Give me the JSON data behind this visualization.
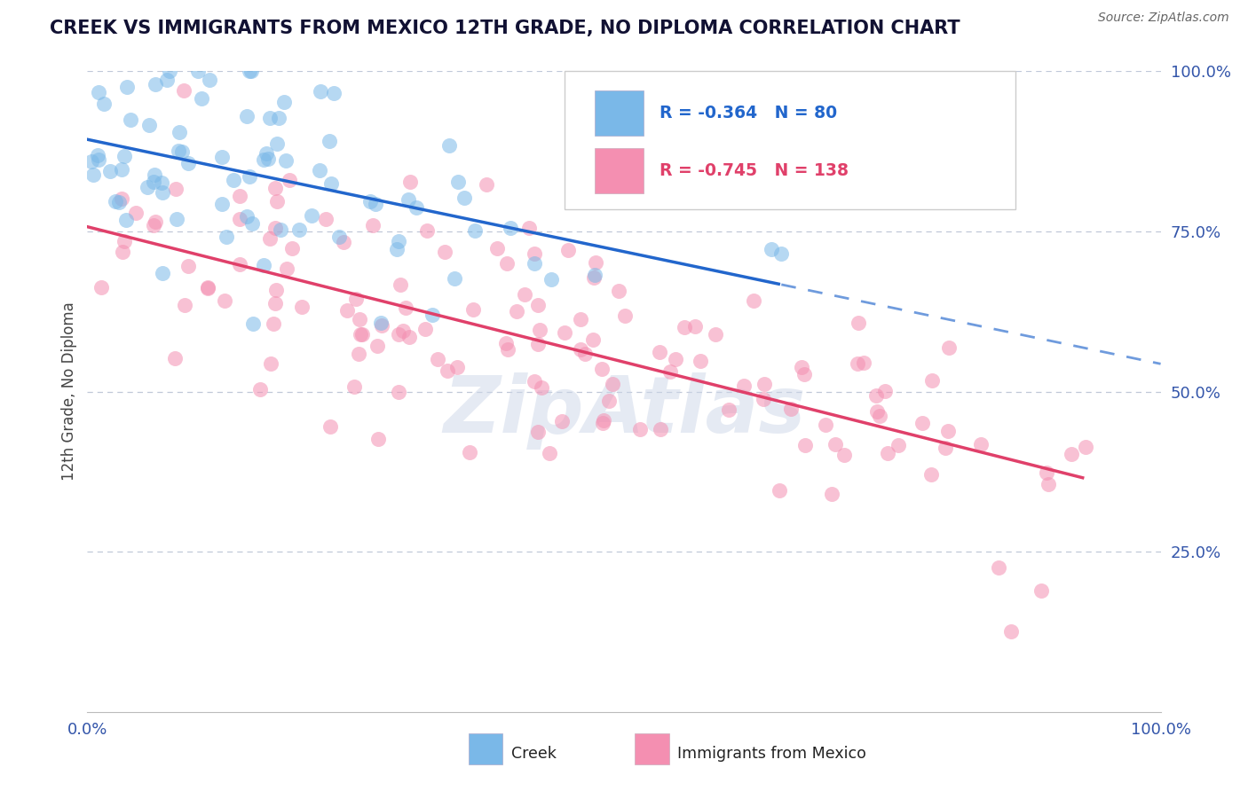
{
  "title": "CREEK VS IMMIGRANTS FROM MEXICO 12TH GRADE, NO DIPLOMA CORRELATION CHART",
  "source": "Source: ZipAtlas.com",
  "ylabel": "12th Grade, No Diploma",
  "legend_creek": "Creek",
  "legend_mexico": "Immigrants from Mexico",
  "R_creek": -0.364,
  "N_creek": 80,
  "R_mexico": -0.745,
  "N_mexico": 138,
  "xlim": [
    0,
    1
  ],
  "ylim": [
    0,
    1
  ],
  "creek_color": "#7ab8e8",
  "mexico_color": "#f48fb1",
  "creek_line_color": "#2266cc",
  "mexico_line_color": "#e0406a",
  "grid_color": "#c0c8d8",
  "background_color": "#ffffff",
  "watermark": "ZipAtlas",
  "watermark_color": "#ccd6e8",
  "tick_color": "#3355aa",
  "title_color": "#111133",
  "ylabel_color": "#444444",
  "source_color": "#666666"
}
